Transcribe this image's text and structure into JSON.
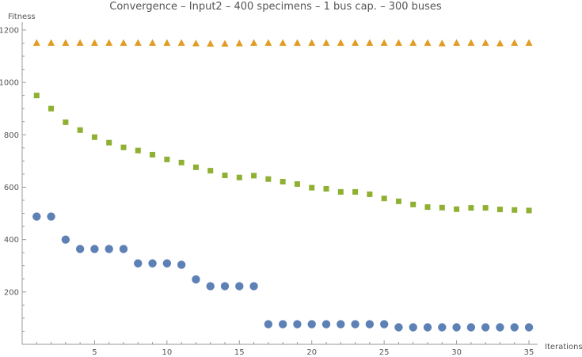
{
  "chart_data": {
    "type": "scatter",
    "title": "Convergence  –  Input2  –  400  specimens  –  1  bus  cap.  –  300  buses",
    "xlabel": "Iterations",
    "ylabel": "Fitness",
    "xlim": [
      0,
      35.6
    ],
    "ylim": [
      0,
      1230
    ],
    "x_ticks": [
      5,
      10,
      15,
      20,
      25,
      30,
      35
    ],
    "y_ticks": [
      200,
      400,
      600,
      800,
      1000,
      1200
    ],
    "grid": false,
    "legend": "none",
    "x": [
      1,
      2,
      3,
      4,
      5,
      6,
      7,
      8,
      9,
      10,
      11,
      12,
      13,
      14,
      15,
      16,
      17,
      18,
      19,
      20,
      21,
      22,
      23,
      24,
      25,
      26,
      27,
      28,
      29,
      30,
      31,
      32,
      33,
      34,
      35
    ],
    "series": [
      {
        "marker": "triangle",
        "color": "#E19C24",
        "values": [
          1150,
          1150,
          1150,
          1150,
          1150,
          1150,
          1150,
          1150,
          1150,
          1150,
          1150,
          1148,
          1147,
          1147,
          1148,
          1150,
          1150,
          1150,
          1150,
          1150,
          1150,
          1150,
          1150,
          1150,
          1150,
          1150,
          1150,
          1150,
          1148,
          1150,
          1150,
          1150,
          1148,
          1150,
          1150
        ]
      },
      {
        "marker": "square",
        "color": "#8FB032",
        "values": [
          950,
          900,
          848,
          818,
          791,
          770,
          752,
          740,
          724,
          706,
          694,
          676,
          663,
          645,
          637,
          644,
          631,
          621,
          612,
          598,
          594,
          582,
          582,
          573,
          557,
          546,
          534,
          524,
          522,
          516,
          521,
          521,
          515,
          513,
          511
        ]
      },
      {
        "marker": "circle",
        "color": "#5E81B5",
        "values": [
          488,
          488,
          400,
          364,
          364,
          364,
          364,
          309,
          309,
          309,
          304,
          248,
          222,
          222,
          222,
          222,
          77,
          77,
          77,
          77,
          77,
          77,
          77,
          77,
          77,
          65,
          65,
          65,
          65,
          65,
          65,
          65,
          65,
          65,
          65
        ]
      }
    ]
  }
}
